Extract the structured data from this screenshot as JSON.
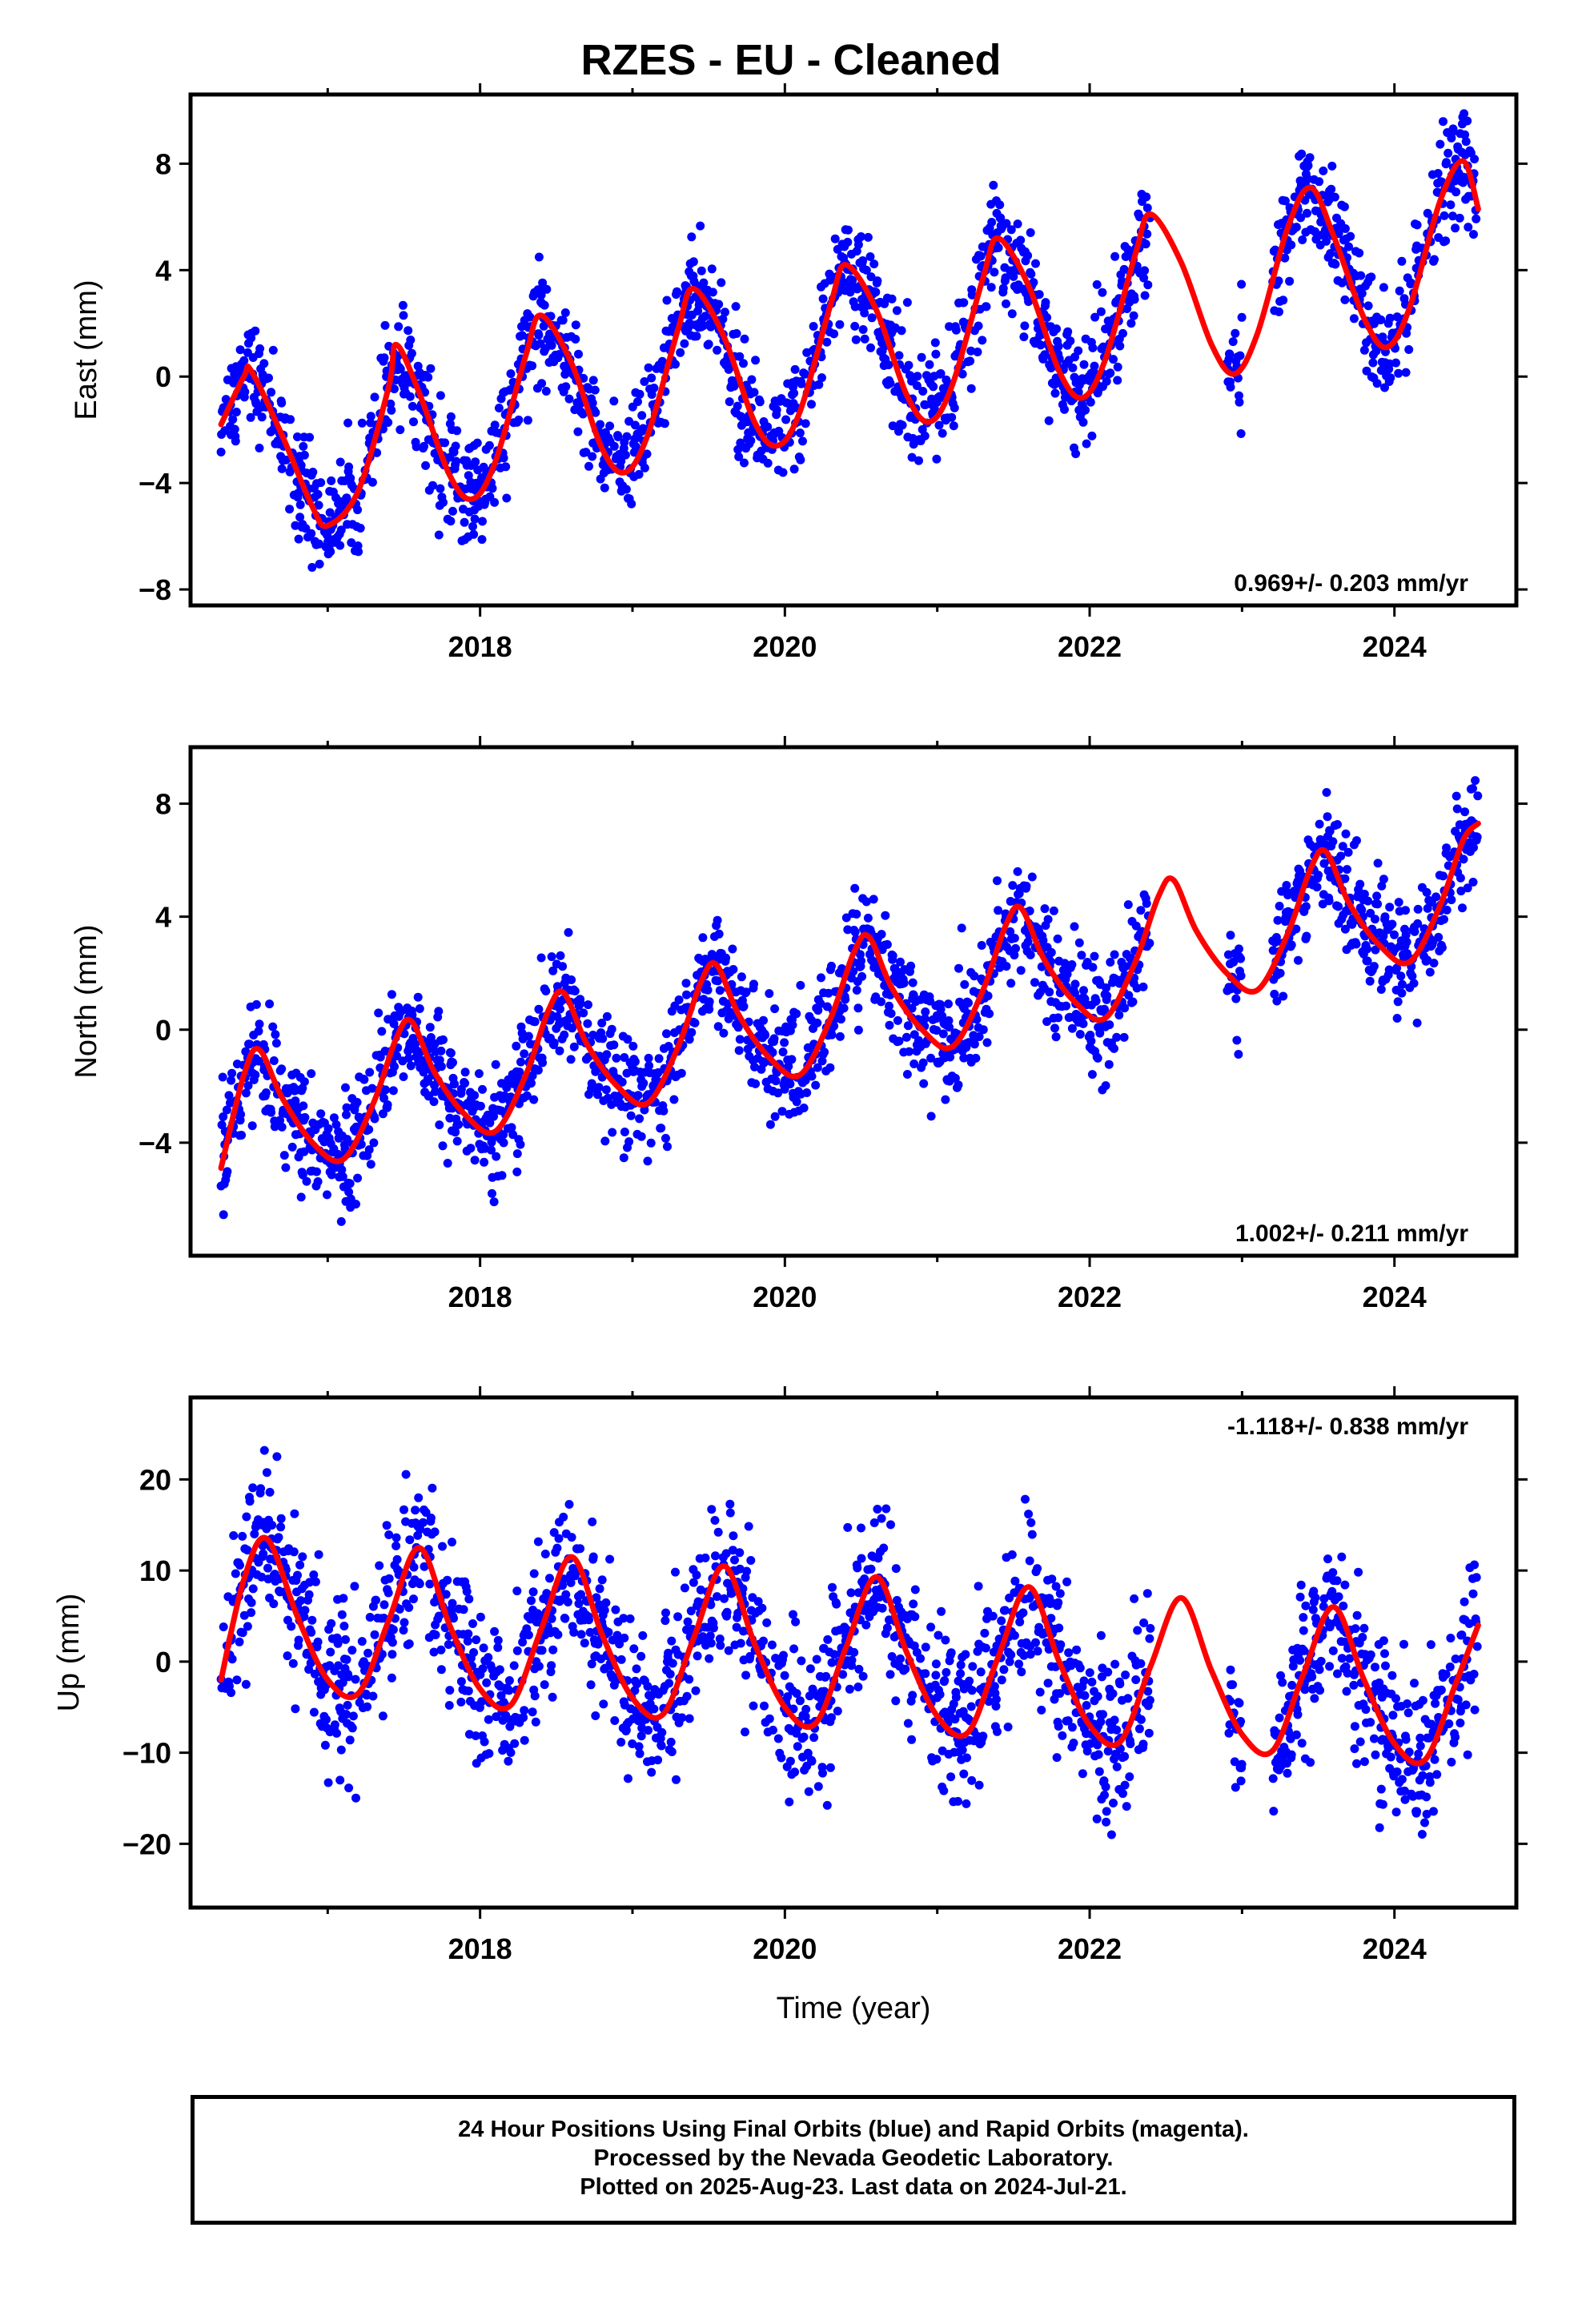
{
  "title": "RZES  - EU - Cleaned",
  "colors": {
    "final_orbits": "#0000ff",
    "model_fit": "#ff0000",
    "frame": "#000000"
  },
  "footer": {
    "line1": "24 Hour Positions Using Final Orbits (blue) and Rapid Orbits (magenta).",
    "line2": "Processed by the Nevada Geodetic Laboratory.",
    "line3": "Plotted on 2025-Aug-23. Last data on 2024-Jul-21."
  },
  "chart_data": [
    {
      "type": "scatter",
      "ylabel": "East (mm)",
      "xlabel": "",
      "xlim": [
        2016.1,
        2024.8
      ],
      "ylim": [
        -8.6,
        10.6
      ],
      "xticks": [
        "2018",
        "2020",
        "2022",
        "2024"
      ],
      "yticks": [
        "-8",
        "-4",
        "0",
        "4",
        "8"
      ],
      "grid": false,
      "rate_label": "0.969+/- 0.203 mm/yr",
      "rate_position": "bottom-right",
      "data_coverage": "2016.3-2022.4, 2022.9-2023.0, 2023.2-2024.55",
      "series": [
        {
          "kind": "points",
          "color": "#0000ff",
          "marker": "dot"
        },
        {
          "kind": "line",
          "color": "#ff0000",
          "x": [
            2016.3,
            2016.45,
            2016.5,
            2016.7,
            2016.9,
            2017.0,
            2017.2,
            2017.4,
            2017.45,
            2017.6,
            2017.8,
            2017.95,
            2018.1,
            2018.3,
            2018.4,
            2018.6,
            2018.8,
            2018.95,
            2019.1,
            2019.3,
            2019.4,
            2019.6,
            2019.8,
            2019.95,
            2020.1,
            2020.3,
            2020.4,
            2020.6,
            2020.8,
            2020.95,
            2021.1,
            2021.3,
            2021.4,
            2021.6,
            2021.8,
            2021.95,
            2022.1,
            2022.3,
            2022.4,
            2022.6,
            2022.8,
            2022.95,
            2023.1,
            2023.3,
            2023.45,
            2023.6,
            2023.8,
            2023.95,
            2024.1,
            2024.3,
            2024.45,
            2024.55
          ],
          "y": [
            -1.8,
            0.0,
            0.2,
            -2.2,
            -4.9,
            -5.6,
            -4.3,
            -0.4,
            1.2,
            -0.6,
            -3.7,
            -4.6,
            -3.2,
            0.8,
            2.3,
            0.5,
            -2.7,
            -3.6,
            -2.2,
            1.8,
            3.3,
            1.5,
            -1.7,
            -2.6,
            -1.3,
            2.7,
            4.2,
            2.5,
            -0.7,
            -1.7,
            -0.3,
            3.7,
            5.2,
            3.4,
            0.2,
            -0.8,
            0.6,
            4.6,
            6.1,
            4.3,
            1.2,
            0.1,
            1.6,
            5.6,
            7.1,
            5.3,
            2.2,
            1.1,
            2.6,
            6.6,
            8.1,
            6.3
          ]
        }
      ]
    },
    {
      "type": "scatter",
      "ylabel": "North (mm)",
      "xlabel": "",
      "xlim": [
        2016.1,
        2024.8
      ],
      "ylim": [
        -8.0,
        10.0
      ],
      "xticks": [
        "2018",
        "2020",
        "2022",
        "2024"
      ],
      "yticks": [
        "-4",
        "0",
        "4",
        "8"
      ],
      "grid": false,
      "rate_label": "1.002+/- 0.211 mm/yr",
      "rate_position": "bottom-right",
      "data_coverage": "2016.3-2022.4, 2022.9-2023.0, 2023.2-2024.55",
      "series": [
        {
          "kind": "points",
          "color": "#0000ff",
          "marker": "dot"
        },
        {
          "kind": "line",
          "color": "#ff0000",
          "x": [
            2016.3,
            2016.45,
            2016.55,
            2016.7,
            2016.9,
            2017.1,
            2017.3,
            2017.45,
            2017.55,
            2017.7,
            2017.9,
            2018.1,
            2018.3,
            2018.45,
            2018.55,
            2018.7,
            2018.9,
            2019.1,
            2019.3,
            2019.45,
            2019.55,
            2019.7,
            2019.9,
            2020.1,
            2020.3,
            2020.45,
            2020.55,
            2020.7,
            2020.9,
            2021.1,
            2021.3,
            2021.45,
            2021.55,
            2021.7,
            2021.9,
            2022.1,
            2022.3,
            2022.45,
            2022.55,
            2022.7,
            2022.9,
            2023.1,
            2023.3,
            2023.45,
            2023.55,
            2023.7,
            2023.9,
            2024.1,
            2024.3,
            2024.45,
            2024.55
          ],
          "y": [
            -4.9,
            -1.6,
            -0.7,
            -2.4,
            -4.0,
            -4.6,
            -2.6,
            -0.3,
            0.3,
            -1.5,
            -3.0,
            -3.6,
            -1.6,
            0.7,
            1.3,
            -0.5,
            -2.0,
            -2.6,
            -0.6,
            1.7,
            2.3,
            0.5,
            -1.0,
            -1.6,
            0.4,
            2.7,
            3.3,
            1.5,
            0.0,
            -0.6,
            1.4,
            3.7,
            4.3,
            2.5,
            1.0,
            0.4,
            2.4,
            4.7,
            5.3,
            3.5,
            2.0,
            1.4,
            3.4,
            5.7,
            6.3,
            4.5,
            3.0,
            2.4,
            4.4,
            6.7,
            7.3
          ]
        }
      ]
    },
    {
      "type": "scatter",
      "ylabel": "Up (mm)",
      "xlabel": "Time (year)",
      "xlim": [
        2016.1,
        2024.8
      ],
      "ylim": [
        -27.0,
        29.0
      ],
      "xticks": [
        "2018",
        "2020",
        "2022",
        "2024"
      ],
      "yticks": [
        "-20",
        "-10",
        "0",
        "10",
        "20"
      ],
      "grid": false,
      "rate_label": "-1.118+/- 0.838 mm/yr",
      "rate_position": "top-right",
      "data_coverage": "2016.3-2022.4, 2022.9-2023.0, 2023.2-2024.55",
      "series": [
        {
          "kind": "points",
          "color": "#0000ff",
          "marker": "dot"
        },
        {
          "kind": "line",
          "color": "#ff0000",
          "x": [
            2016.3,
            2016.45,
            2016.6,
            2016.8,
            2017.0,
            2017.2,
            2017.4,
            2017.6,
            2017.8,
            2018.0,
            2018.2,
            2018.4,
            2018.6,
            2018.8,
            2019.0,
            2019.2,
            2019.4,
            2019.6,
            2019.8,
            2020.0,
            2020.2,
            2020.4,
            2020.6,
            2020.8,
            2021.0,
            2021.2,
            2021.4,
            2021.6,
            2021.8,
            2022.0,
            2022.2,
            2022.4,
            2022.6,
            2022.8,
            2023.0,
            2023.2,
            2023.4,
            2023.6,
            2023.8,
            2024.0,
            2024.2,
            2024.4,
            2024.55
          ],
          "y": [
            -2.0,
            9.0,
            13.5,
            5.0,
            -2.0,
            -3.5,
            4.5,
            12.5,
            4.0,
            -3.0,
            -4.8,
            3.5,
            11.5,
            3.0,
            -4.0,
            -5.8,
            2.5,
            10.5,
            2.0,
            -5.0,
            -6.8,
            1.5,
            9.3,
            1.0,
            -6.0,
            -7.8,
            0.5,
            8.2,
            0.0,
            -7.0,
            -8.8,
            -0.5,
            7.0,
            -1.0,
            -8.0,
            -9.8,
            -1.5,
            6.0,
            -2.0,
            -9.0,
            -10.8,
            -2.5,
            4.0
          ]
        }
      ]
    }
  ]
}
